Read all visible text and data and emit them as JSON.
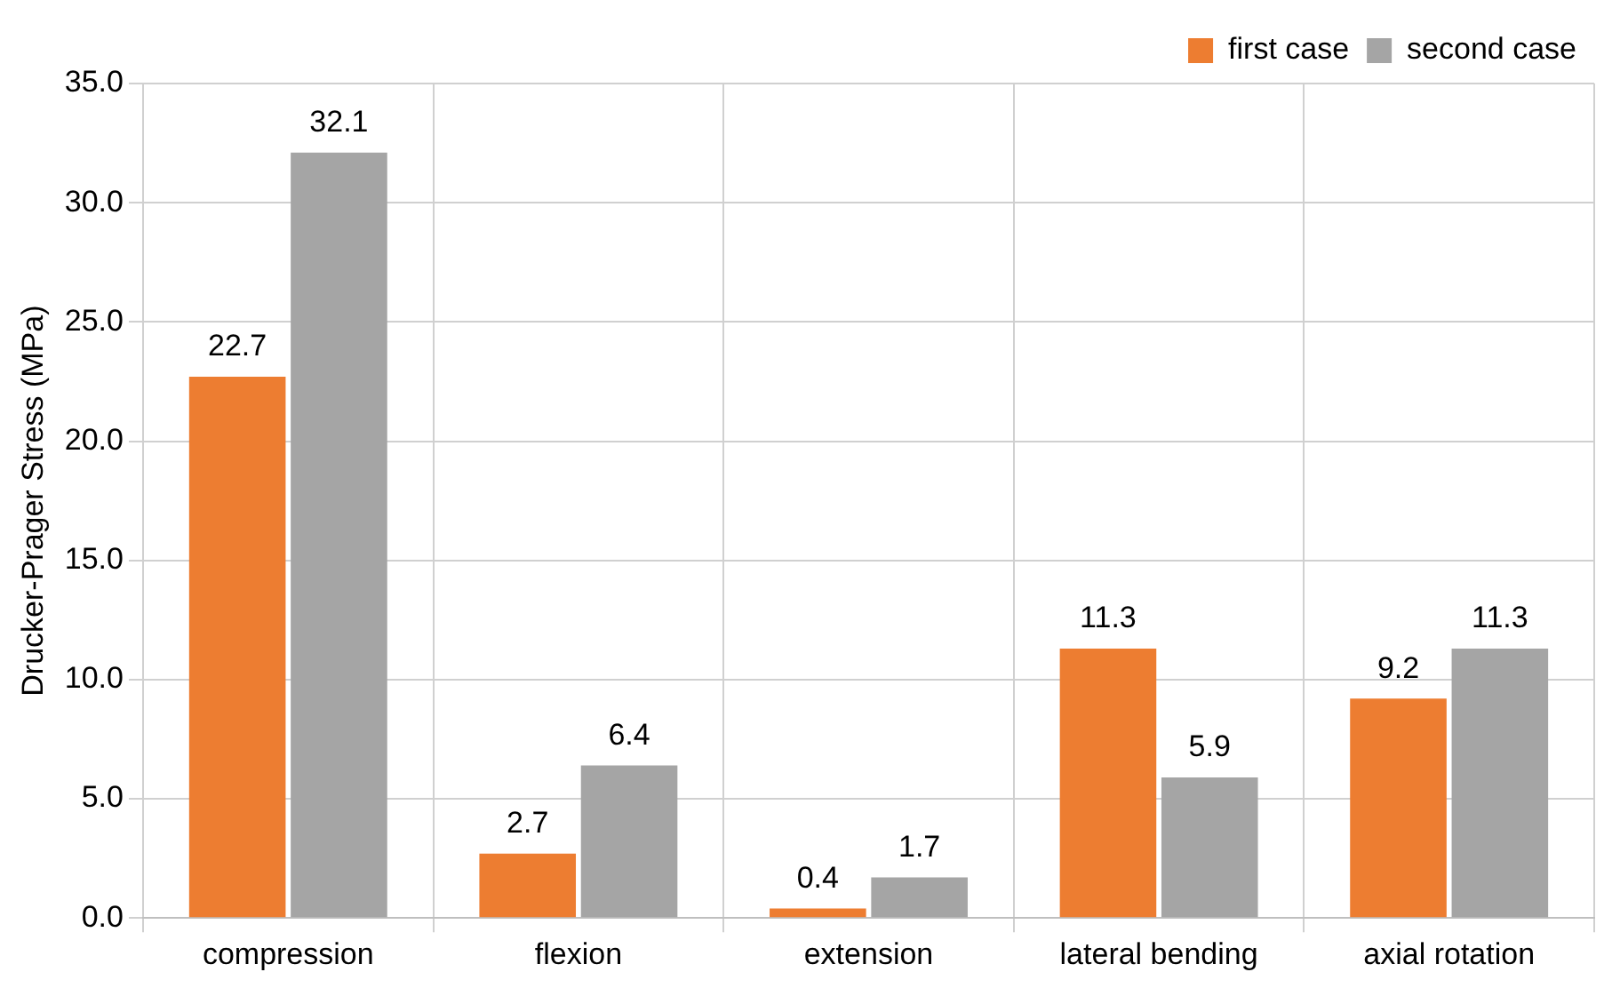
{
  "chart_data": {
    "type": "bar",
    "ylabel": "Drucker-Prager Stress (MPa)",
    "categories": [
      "compression",
      "flexion",
      "extension",
      "lateral bending",
      "axial rotation"
    ],
    "series": [
      {
        "name": "first case",
        "color": "#ed7d31",
        "values": [
          22.7,
          2.7,
          0.4,
          11.3,
          9.2
        ]
      },
      {
        "name": "second case",
        "color": "#a5a5a5",
        "values": [
          32.1,
          6.4,
          1.7,
          5.9,
          11.3
        ]
      }
    ],
    "ylim": [
      0,
      35
    ],
    "yticks": [
      {
        "value": 0,
        "label": "0.0"
      },
      {
        "value": 5,
        "label": "5.0"
      },
      {
        "value": 10,
        "label": "10.0"
      },
      {
        "value": 15,
        "label": "15.0"
      },
      {
        "value": 20,
        "label": "20.0"
      },
      {
        "value": 25,
        "label": "25.0"
      },
      {
        "value": 30,
        "label": "30.0"
      },
      {
        "value": 35,
        "label": "35.0"
      }
    ],
    "grid": true,
    "legend": "top right",
    "data_labels": true
  }
}
